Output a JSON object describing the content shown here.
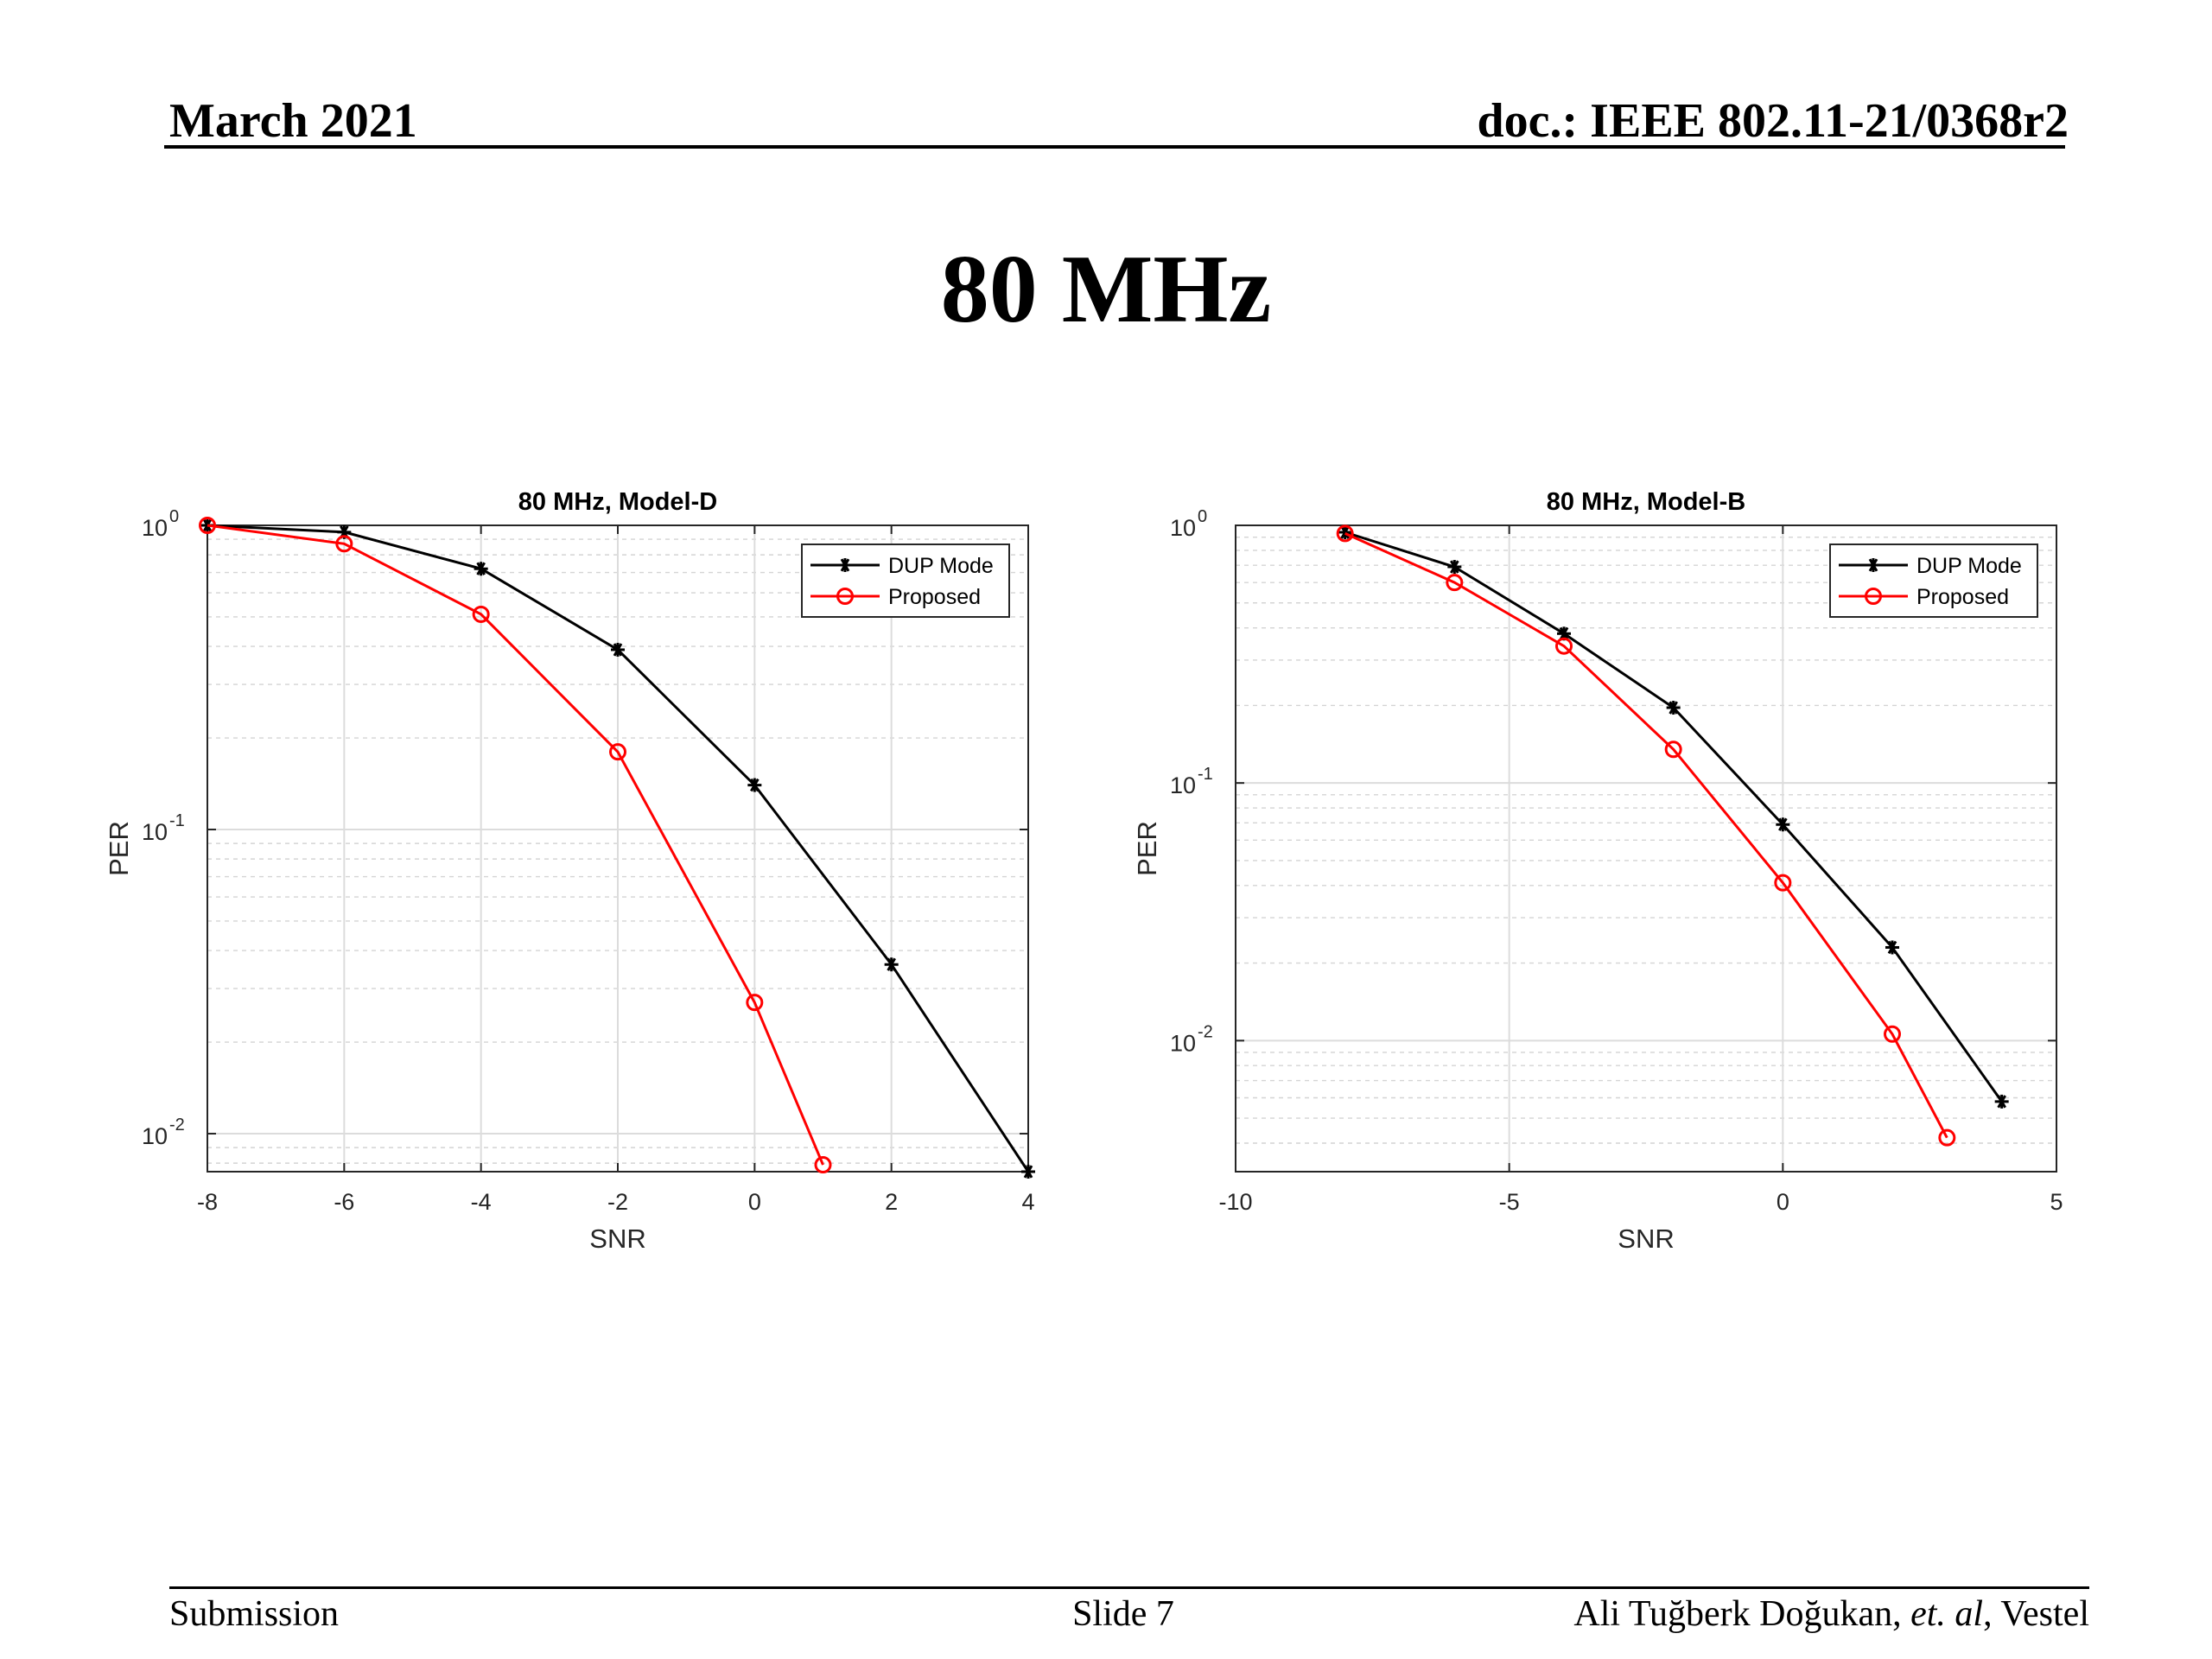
{
  "header": {
    "date": "March 2021",
    "doc": "doc.: IEEE 802.11-21/0368r2"
  },
  "slide": {
    "title": "80 MHz"
  },
  "footer": {
    "left": "Submission",
    "center": "Slide 7",
    "right_pre": "Ali Tuğberk Doğukan, ",
    "right_em": "et. al",
    "right_post": ", Vestel"
  },
  "chart_data": [
    {
      "type": "line",
      "title": "80 MHz, Model-D",
      "xlabel": "SNR",
      "ylabel": "PER",
      "yscale": "log",
      "xlim": [
        -8,
        4
      ],
      "ylim": [
        0.0075,
        1.0
      ],
      "xticks": [
        -8,
        -6,
        -4,
        -2,
        0,
        2,
        4
      ],
      "yticks": [
        {
          "value": 1.0,
          "base": "10",
          "exp": "0"
        },
        {
          "value": 0.1,
          "base": "10",
          "exp": "-1"
        },
        {
          "value": 0.01,
          "base": "10",
          "exp": "-2"
        }
      ],
      "grid": true,
      "legend": "top-right",
      "series": [
        {
          "name": "DUP Mode",
          "color": "#000000",
          "marker": "asterisk",
          "x": [
            -8,
            -6,
            -4,
            -2,
            0,
            2,
            4
          ],
          "y": [
            1.0,
            0.95,
            0.72,
            0.39,
            0.14,
            0.036,
            0.0075
          ]
        },
        {
          "name": "Proposed",
          "color": "#ff0000",
          "marker": "circle",
          "x": [
            -8,
            -6,
            -4,
            -2,
            0,
            1
          ],
          "y": [
            1.0,
            0.87,
            0.51,
            0.18,
            0.027,
            0.0079
          ]
        }
      ]
    },
    {
      "type": "line",
      "title": "80 MHz, Model-B",
      "xlabel": "SNR",
      "ylabel": "PER",
      "yscale": "log",
      "xlim": [
        -10,
        5
      ],
      "ylim": [
        0.0031,
        1.0
      ],
      "xticks": [
        -10,
        -5,
        0,
        5
      ],
      "yticks": [
        {
          "value": 1.0,
          "base": "10",
          "exp": "0"
        },
        {
          "value": 0.1,
          "base": "10",
          "exp": "-1"
        },
        {
          "value": 0.01,
          "base": "10",
          "exp": "-2"
        }
      ],
      "grid": true,
      "legend": "top-right",
      "series": [
        {
          "name": "DUP Mode",
          "color": "#000000",
          "marker": "asterisk",
          "x": [
            -8,
            -6,
            -4,
            -2,
            0,
            2,
            4
          ],
          "y": [
            0.94,
            0.69,
            0.38,
            0.196,
            0.069,
            0.023,
            0.0058
          ]
        },
        {
          "name": "Proposed",
          "color": "#ff0000",
          "marker": "circle",
          "x": [
            -8,
            -6,
            -4,
            -2,
            0,
            2,
            3
          ],
          "y": [
            0.93,
            0.6,
            0.34,
            0.135,
            0.041,
            0.0106,
            0.0042
          ]
        }
      ]
    }
  ]
}
